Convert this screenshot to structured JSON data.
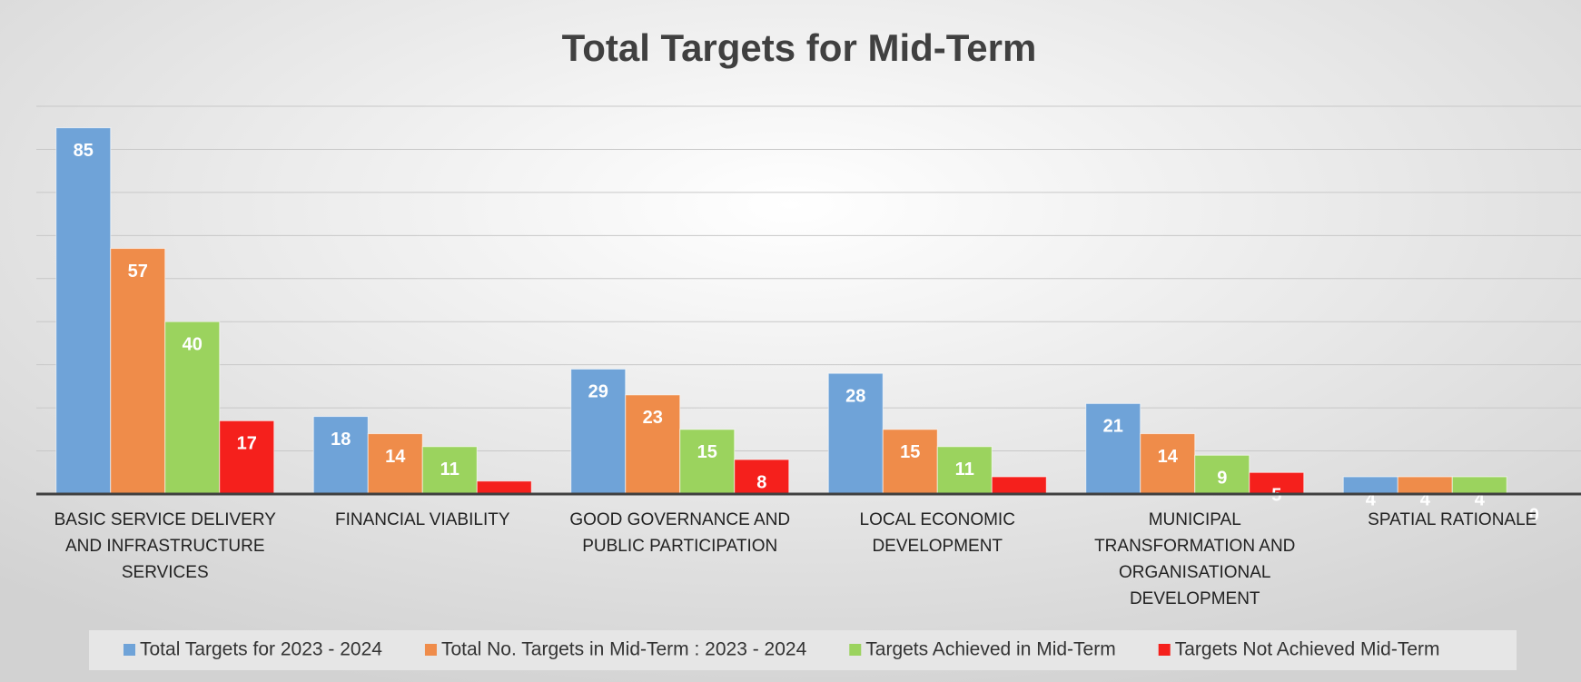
{
  "chart_data": {
    "type": "bar",
    "title": "Total Targets for Mid-Term",
    "categories": [
      "BASIC SERVICE DELIVERY AND INFRASTRUCTURE SERVICES",
      "FINANCIAL VIABILITY",
      "GOOD GOVERNANCE AND PUBLIC PARTICIPATION",
      "LOCAL ECONOMIC DEVELOPMENT",
      "MUNICIPAL TRANSFORMATION AND ORGANISATIONAL DEVELOPMENT",
      "SPATIAL RATIONALE"
    ],
    "series": [
      {
        "name": "Total Targets for 2023 - 2024",
        "color": "#6fa3d8",
        "values": [
          85,
          18,
          29,
          28,
          21,
          4
        ]
      },
      {
        "name": "Total No. Targets in Mid-Term : 2023 - 2024",
        "color": "#ef8c4a",
        "values": [
          57,
          14,
          23,
          15,
          14,
          4
        ]
      },
      {
        "name": "Targets Achieved in Mid-Term",
        "color": "#9bd35e",
        "values": [
          40,
          11,
          15,
          11,
          9,
          4
        ]
      },
      {
        "name": "Targets Not Achieved Mid-Term",
        "color": "#f5201c",
        "values": [
          17,
          3,
          8,
          4,
          5,
          0
        ],
        "value_labels": [
          "17",
          null,
          "8",
          null,
          "5",
          "0"
        ]
      }
    ],
    "ylim": [
      0,
      90
    ],
    "yticks": [
      0,
      10,
      20,
      30,
      40,
      50,
      60,
      70,
      80,
      90
    ],
    "grid": true,
    "legend": "bottom"
  }
}
